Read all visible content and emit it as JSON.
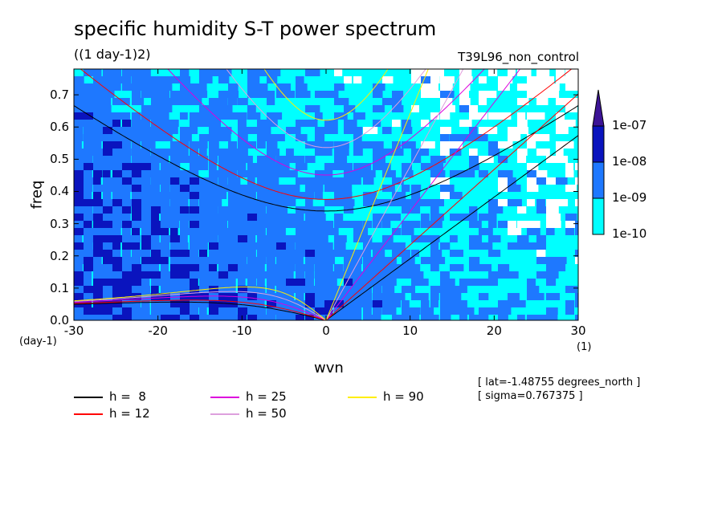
{
  "chart_data": {
    "type": "heatmap",
    "title": "specific humidity S-T power spectrum",
    "subtitle": "((1 day-1)2)",
    "run_label": "T39L96_non_control",
    "xlabel": "wvn",
    "ylabel": "freq",
    "x_unit": "(1)",
    "y_unit": "(day-1)",
    "xlim": [
      -30,
      30
    ],
    "ylim": [
      0,
      0.78
    ],
    "x_ticks": [
      "-30",
      "-20",
      "-10",
      "0",
      "10",
      "20",
      "30"
    ],
    "x_tick_values": [
      -30,
      -20,
      -10,
      0,
      10,
      20,
      30
    ],
    "y_ticks": [
      "0.0",
      "0.1",
      "0.2",
      "0.3",
      "0.4",
      "0.5",
      "0.6",
      "0.7"
    ],
    "y_tick_values": [
      0,
      0.1,
      0.2,
      0.3,
      0.4,
      0.5,
      0.6,
      0.7
    ],
    "colorbar": {
      "levels": [
        "1e-10",
        "1e-09",
        "1e-08",
        "1e-07"
      ],
      "colors": [
        "#00ffff",
        "#1e78ff",
        "#0a14be",
        "#3c1496"
      ]
    },
    "dispersion_curves": [
      {
        "name": "h =  8",
        "h": 8,
        "color": "#000000"
      },
      {
        "name": "h = 12",
        "h": 12,
        "color": "#ff0000"
      },
      {
        "name": "h = 25",
        "h": 25,
        "color": "#dd00dd"
      },
      {
        "name": "h = 50",
        "h": 50,
        "color": "#dda0dd"
      },
      {
        "name": "h = 90",
        "h": 90,
        "color": "#ffee00"
      }
    ],
    "annotations": [
      "[ lat=-1.48755 degrees_north ]",
      "[ sigma=0.767375 ]"
    ]
  }
}
